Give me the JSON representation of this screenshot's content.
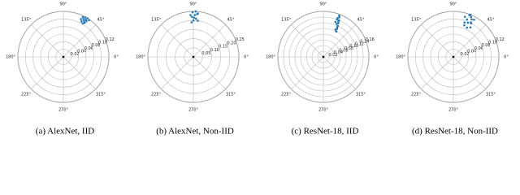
{
  "chart_data": [
    {
      "type": "polar-scatter",
      "caption": "(a) AlexNet, IID",
      "xticks": [
        {
          "value": 0,
          "label": "0°"
        },
        {
          "value": 45,
          "label": "45°"
        },
        {
          "value": 90,
          "label": "90°"
        },
        {
          "value": 135,
          "label": "135°"
        },
        {
          "value": 180,
          "label": "180°"
        },
        {
          "value": 225,
          "label": "225°"
        },
        {
          "value": 270,
          "label": "270°"
        },
        {
          "value": 315,
          "label": "315°"
        }
      ],
      "ylim": [
        0,
        0.12
      ],
      "yticks": [
        0.02,
        0.04,
        0.06,
        0.08,
        {
          "value": 0.1,
          "label": "0.10"
        },
        0.12
      ],
      "series": [
        {
          "color": "#1f77b4",
          "x": [
            55,
            57,
            58,
            59,
            60,
            61,
            62,
            63,
            64,
            65,
            60,
            58
          ],
          "values": [
            0.118,
            0.112,
            0.106,
            0.115,
            0.109,
            0.119,
            0.113,
            0.105,
            0.117,
            0.11,
            0.102,
            0.12
          ]
        },
        {
          "color": "#000000",
          "x": [
            0
          ],
          "values": [
            0
          ]
        }
      ]
    },
    {
      "type": "polar-scatter",
      "caption": "(b) AlexNet, Non-IID",
      "xticks": [
        {
          "value": 0,
          "label": "0°"
        },
        {
          "value": 45,
          "label": "45°"
        },
        {
          "value": 90,
          "label": "90°"
        },
        {
          "value": 135,
          "label": "135°"
        },
        {
          "value": 180,
          "label": "180°"
        },
        {
          "value": 225,
          "label": "225°"
        },
        {
          "value": 270,
          "label": "270°"
        },
        {
          "value": 315,
          "label": "315°"
        }
      ],
      "ylim": [
        0,
        0.25
      ],
      "yticks": [
        0.05,
        {
          "value": 0.1,
          "label": "0.10"
        },
        0.15,
        {
          "value": 0.2,
          "label": "0.20"
        },
        0.25
      ],
      "series": [
        {
          "color": "#1f77b4",
          "x": [
            84,
            86,
            88,
            90,
            91,
            92,
            93,
            85,
            89,
            87,
            94,
            83
          ],
          "values": [
            0.24,
            0.21,
            0.23,
            0.2,
            0.245,
            0.22,
            0.19,
            0.235,
            0.215,
            0.25,
            0.23,
            0.2
          ]
        },
        {
          "color": "#000000",
          "x": [
            0
          ],
          "values": [
            0
          ]
        }
      ]
    },
    {
      "type": "polar-scatter",
      "caption": "(c) ResNet-18, IID",
      "xticks": [
        {
          "value": 0,
          "label": "0°"
        },
        {
          "value": 45,
          "label": "45°"
        },
        {
          "value": 90,
          "label": "90°"
        },
        {
          "value": 135,
          "label": "135°"
        },
        {
          "value": 180,
          "label": "180°"
        },
        {
          "value": 225,
          "label": "225°"
        },
        {
          "value": 270,
          "label": "270°"
        },
        {
          "value": 315,
          "label": "315°"
        }
      ],
      "ylim": [
        0,
        0.16
      ],
      "yticks": [
        0.02,
        0.04,
        0.06,
        0.08,
        {
          "value": 0.1,
          "label": "0.10"
        },
        0.12,
        0.14,
        0.16
      ],
      "series": [
        {
          "color": "#1f77b4",
          "x": [
            63,
            64,
            65,
            66,
            67,
            68,
            69,
            70,
            71,
            66,
            68,
            70,
            65,
            67
          ],
          "values": [
            0.1,
            0.11,
            0.12,
            0.13,
            0.14,
            0.15,
            0.155,
            0.14,
            0.13,
            0.105,
            0.125,
            0.145,
            0.115,
            0.135
          ]
        },
        {
          "color": "#000000",
          "x": [
            0
          ],
          "values": [
            0
          ]
        }
      ]
    },
    {
      "type": "polar-scatter",
      "caption": "(d) ResNet-18, Non-IID",
      "xticks": [
        {
          "value": 0,
          "label": "0°"
        },
        {
          "value": 45,
          "label": "45°"
        },
        {
          "value": 90,
          "label": "90°"
        },
        {
          "value": 135,
          "label": "135°"
        },
        {
          "value": 180,
          "label": "180°"
        },
        {
          "value": 225,
          "label": "225°"
        },
        {
          "value": 270,
          "label": "270°"
        },
        {
          "value": 315,
          "label": "315°"
        }
      ],
      "ylim": [
        0,
        0.12
      ],
      "yticks": [
        0.02,
        0.04,
        0.06,
        0.08,
        {
          "value": 0.1,
          "label": "0.10"
        },
        0.12
      ],
      "series": [
        {
          "color": "#1f77b4",
          "x": [
            60,
            62,
            64,
            66,
            68,
            70,
            72,
            74,
            65,
            69,
            63,
            71,
            67,
            61
          ],
          "values": [
            0.09,
            0.1,
            0.11,
            0.115,
            0.12,
            0.105,
            0.095,
            0.11,
            0.085,
            0.118,
            0.102,
            0.088,
            0.098,
            0.112
          ]
        },
        {
          "color": "#000000",
          "x": [
            0
          ],
          "values": [
            0
          ]
        }
      ]
    }
  ]
}
